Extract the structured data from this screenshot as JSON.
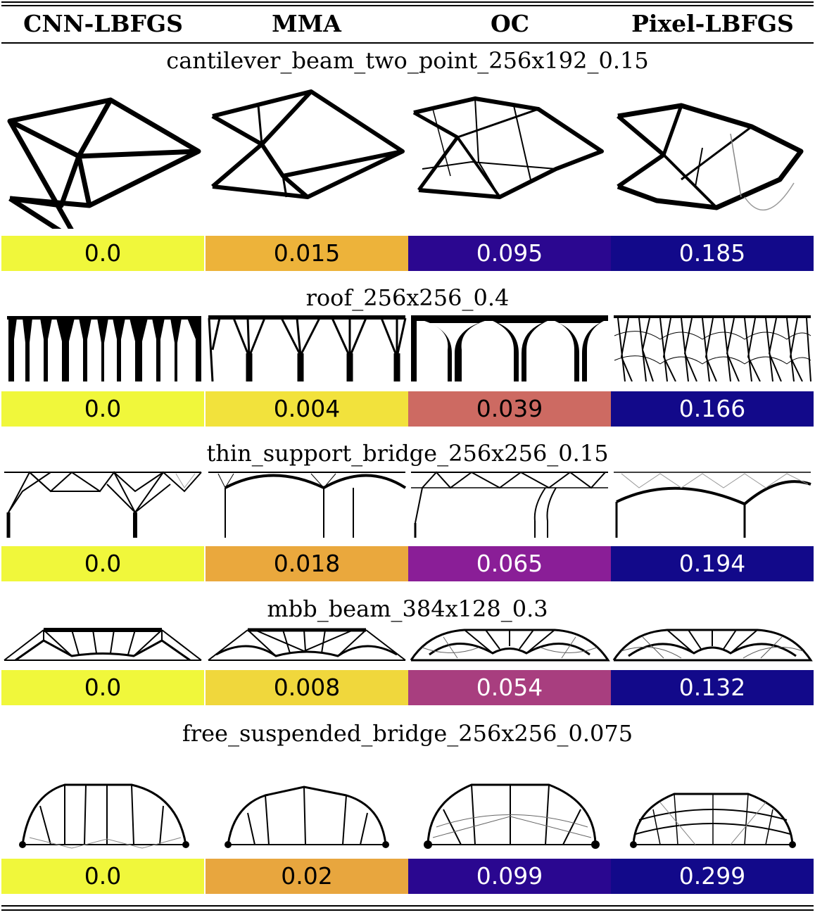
{
  "columns": [
    "CNN-LBFGS",
    "MMA",
    "OC",
    "Pixel-LBFGS"
  ],
  "problems": [
    {
      "title": "cantilever_beam_two_point_256x192_0.15",
      "values": [
        "0.0",
        "0.015",
        "0.095",
        "0.185"
      ],
      "colors": [
        "#f0f73b",
        "#edb33a",
        "#2b0790",
        "#12098a"
      ]
    },
    {
      "title": "roof_256x256_0.4",
      "values": [
        "0.0",
        "0.004",
        "0.039",
        "0.166"
      ],
      "colors": [
        "#f0f73b",
        "#f2e23c",
        "#cd6a62",
        "#12098a"
      ]
    },
    {
      "title": "thin_support_bridge_256x256_0.15",
      "values": [
        "0.0",
        "0.018",
        "0.065",
        "0.194"
      ],
      "colors": [
        "#f0f73b",
        "#eaa83d",
        "#8a1e97",
        "#12098a"
      ]
    },
    {
      "title": "mbb_beam_384x128_0.3",
      "values": [
        "0.0",
        "0.008",
        "0.054",
        "0.132"
      ],
      "colors": [
        "#f0f73b",
        "#f0d73c",
        "#a83e7f",
        "#12098a"
      ]
    },
    {
      "title": "free_suspended_bridge_256x256_0.075",
      "values": [
        "0.0",
        "0.02",
        "0.099",
        "0.299"
      ],
      "colors": [
        "#f0f73b",
        "#e8a63e",
        "#2a0790",
        "#12098a"
      ]
    }
  ]
}
